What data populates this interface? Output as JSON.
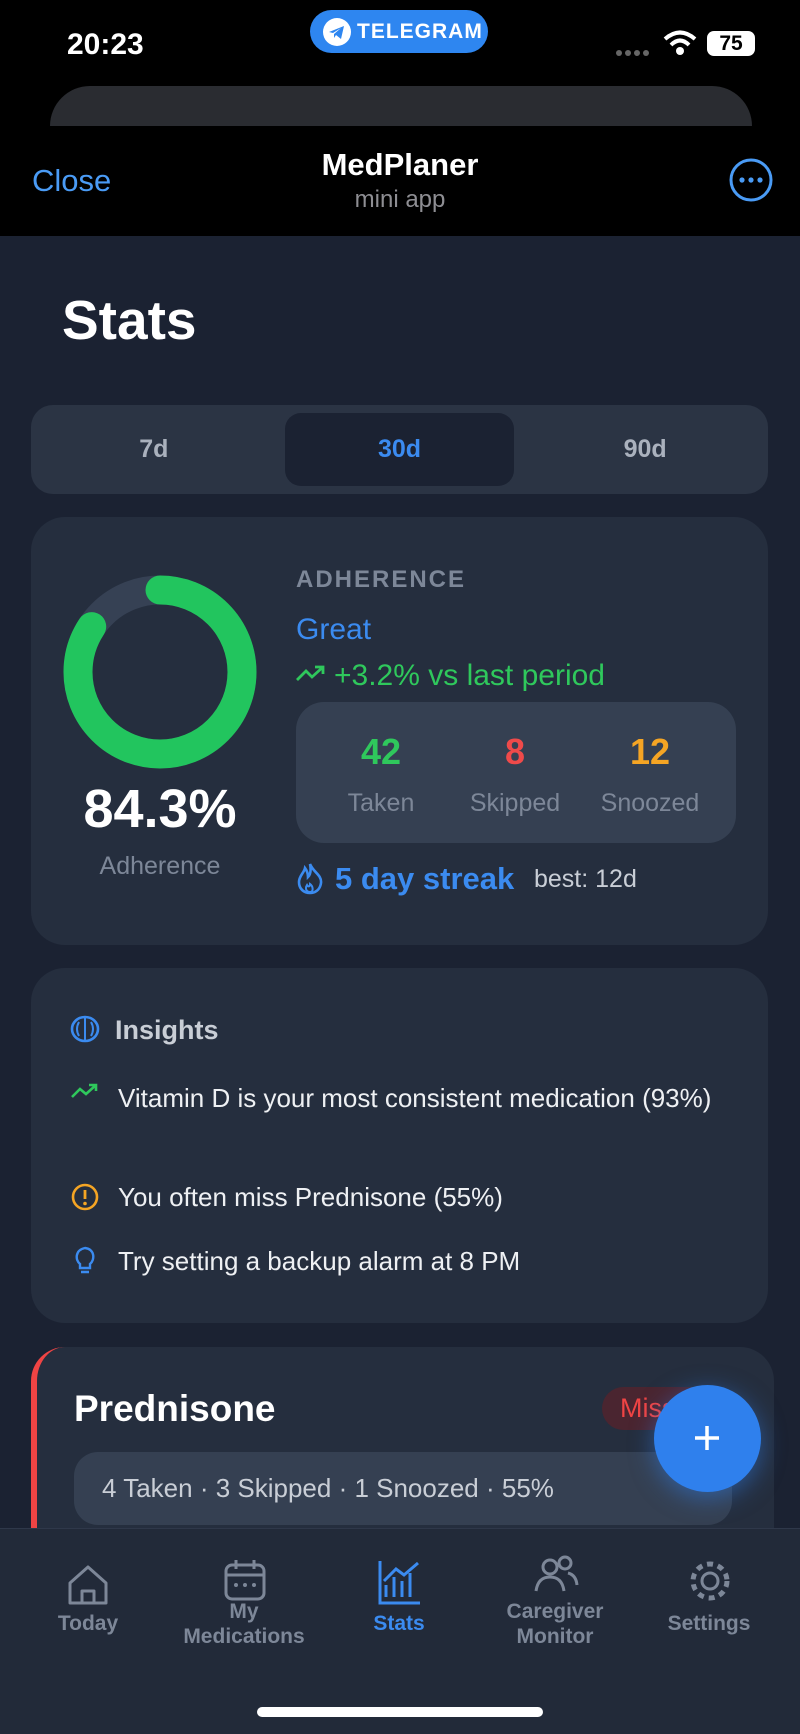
{
  "status_bar": {
    "time": "20:23",
    "app_pill": "TELEGRAM",
    "battery": "75"
  },
  "header": {
    "close": "Close",
    "title": "MedPlaner",
    "subtitle": "mini app"
  },
  "page_title": "Stats",
  "period_tabs": {
    "items": [
      "7d",
      "30d",
      "90d"
    ],
    "selected_index": 1
  },
  "adherence_card": {
    "heading": "ADHERENCE",
    "rating": "Great",
    "trend": "+3.2% vs last period",
    "percent": {
      "value": 84.3,
      "label": "84.3%"
    },
    "percent_caption": "Adherence",
    "counts": [
      {
        "value": 42,
        "label": "Taken",
        "color": "#2fc85c"
      },
      {
        "value": 8,
        "label": "Skipped",
        "color": "#ef4a4a"
      },
      {
        "value": 12,
        "label": "Snoozed",
        "color": "#f5a524"
      }
    ],
    "streak": "5 day streak",
    "best": "best: 12d"
  },
  "insights": {
    "title": "Insights",
    "items": [
      "Vitamin D is your most consistent medication (93%)",
      "You often miss Prednisone (55%)",
      "Try setting a backup alarm at 8 PM"
    ]
  },
  "medication_card": {
    "name": "Prednisone",
    "badge": "Missed",
    "summary": "4 Taken · 3 Skipped · 1 Snoozed · 55%"
  },
  "tab_bar": [
    "Today",
    "My Medications",
    "Stats",
    "Caregiver Monitor",
    "Settings"
  ]
}
